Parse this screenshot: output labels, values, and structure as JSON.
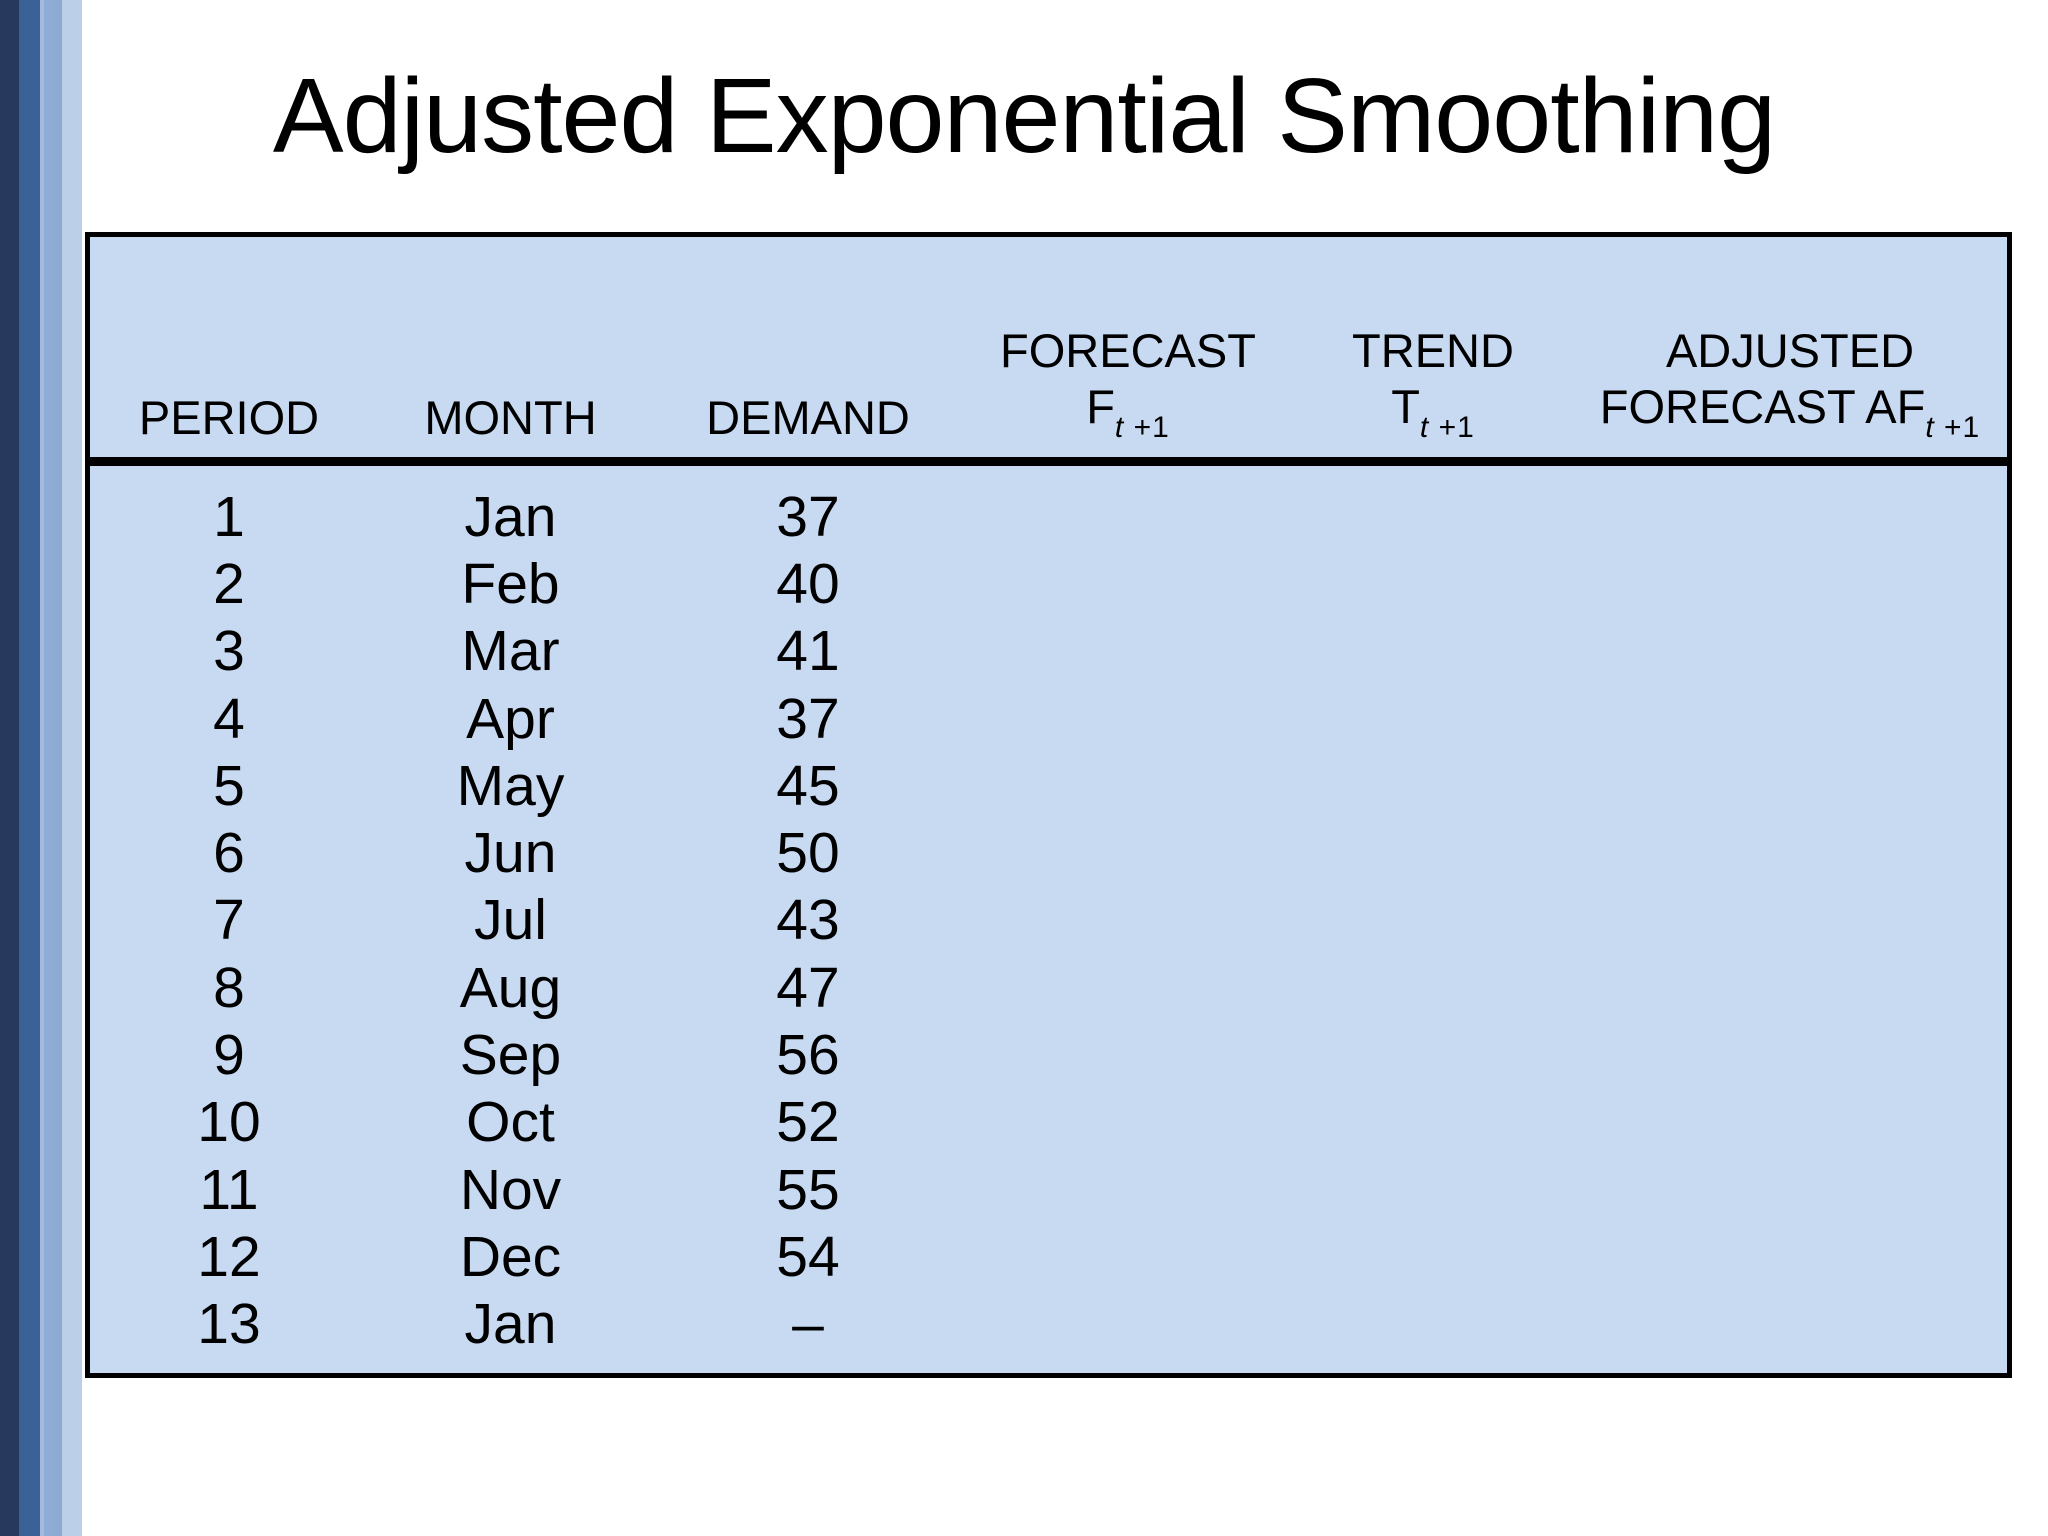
{
  "slide": {
    "title": "Adjusted Exponential Smoothing"
  },
  "table": {
    "header": {
      "col_period": {
        "label": "PERIOD"
      },
      "col_month": {
        "label": "MONTH"
      },
      "col_demand": {
        "label": "DEMAND"
      },
      "col_forecast": {
        "line1": "FORECAST",
        "symbol": "F",
        "sub_italic": "t",
        "sub_plain": " +1"
      },
      "col_trend": {
        "line1": "TREND",
        "symbol": "T",
        "sub_italic": "t",
        "sub_plain": " +1"
      },
      "col_adjusted": {
        "line1": "ADJUSTED",
        "symbol": "FORECAST AF",
        "sub_italic": "t",
        "sub_plain": " +1"
      }
    },
    "rows": [
      {
        "period": "1",
        "month": "Jan",
        "demand": "37"
      },
      {
        "period": "2",
        "month": "Feb",
        "demand": "40"
      },
      {
        "period": "3",
        "month": "Mar",
        "demand": "41"
      },
      {
        "period": "4",
        "month": "Apr",
        "demand": "37"
      },
      {
        "period": "5",
        "month": "May",
        "demand": "45"
      },
      {
        "period": "6",
        "month": "Jun",
        "demand": "50"
      },
      {
        "period": "7",
        "month": "Jul",
        "demand": "43"
      },
      {
        "period": "8",
        "month": "Aug",
        "demand": "47"
      },
      {
        "period": "9",
        "month": "Sep",
        "demand": "56"
      },
      {
        "period": "10",
        "month": "Oct",
        "demand": "52"
      },
      {
        "period": "11",
        "month": "Nov",
        "demand": "55"
      },
      {
        "period": "12",
        "month": "Dec",
        "demand": "54"
      },
      {
        "period": "13",
        "month": "Jan",
        "demand": "–"
      }
    ]
  },
  "colors": {
    "background": "#FFFFFF",
    "text": "#000000",
    "table_fill": "#C8DAF1",
    "table_border": "#000000",
    "stripe_dark_navy": "#27395C",
    "stripe_medium_blue": "#3A6296",
    "stripe_light_blue": "#8FADD6",
    "stripe_pale_blue": "#BCCFE9"
  }
}
